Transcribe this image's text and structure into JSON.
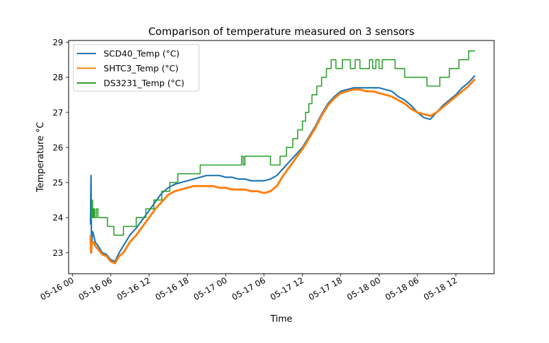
{
  "chart_data": {
    "type": "line",
    "title": "Comparison of temperature measured on 3 sensors",
    "xlabel": "Time",
    "ylabel": "Temperature °C",
    "xlim": [
      "2016-05-15T23:25",
      "2016-05-18T18:00"
    ],
    "ylim": [
      22.4,
      29.05
    ],
    "x_ticks": [
      "05-16 00",
      "05-16 06",
      "05-16 12",
      "05-16 18",
      "05-17 00",
      "05-17 06",
      "05-17 12",
      "05-17 18",
      "05-18 00",
      "05-18 06",
      "05-18 12"
    ],
    "y_ticks": [
      "23",
      "24",
      "25",
      "26",
      "27",
      "28",
      "29"
    ],
    "legend_position": "upper-left",
    "grid": false,
    "series": [
      {
        "name": "SCD40_Temp (°C)",
        "color": "#1f77b4",
        "x": [
          "2016-05-16T02:50",
          "2016-05-16T02:55",
          "2016-05-16T03:00",
          "2016-05-16T03:05",
          "2016-05-16T03:10",
          "2016-05-16T03:20",
          "2016-05-16T03:35",
          "2016-05-16T04:00",
          "2016-05-16T04:40",
          "2016-05-16T05:20",
          "2016-05-16T06:00",
          "2016-05-16T06:40",
          "2016-05-16T07:20",
          "2016-05-16T08:00",
          "2016-05-16T09:00",
          "2016-05-16T10:00",
          "2016-05-16T11:00",
          "2016-05-16T12:00",
          "2016-05-16T13:00",
          "2016-05-16T14:00",
          "2016-05-16T15:00",
          "2016-05-16T16:00",
          "2016-05-16T17:00",
          "2016-05-16T18:00",
          "2016-05-16T19:00",
          "2016-05-16T20:00",
          "2016-05-16T21:00",
          "2016-05-16T22:00",
          "2016-05-16T23:00",
          "2016-05-17T00:00",
          "2016-05-17T01:00",
          "2016-05-17T02:00",
          "2016-05-17T03:00",
          "2016-05-17T04:00",
          "2016-05-17T05:00",
          "2016-05-17T06:00",
          "2016-05-17T07:00",
          "2016-05-17T08:00",
          "2016-05-17T09:00",
          "2016-05-17T10:00",
          "2016-05-17T11:00",
          "2016-05-17T12:00",
          "2016-05-17T13:00",
          "2016-05-17T14:00",
          "2016-05-17T15:00",
          "2016-05-17T16:00",
          "2016-05-17T17:00",
          "2016-05-17T18:00",
          "2016-05-17T19:00",
          "2016-05-17T20:00",
          "2016-05-17T21:00",
          "2016-05-17T22:00",
          "2016-05-17T23:00",
          "2016-05-18T00:00",
          "2016-05-18T01:00",
          "2016-05-18T02:00",
          "2016-05-18T03:00",
          "2016-05-18T04:00",
          "2016-05-18T05:00",
          "2016-05-18T06:00",
          "2016-05-18T07:00",
          "2016-05-18T08:00",
          "2016-05-18T09:00",
          "2016-05-18T10:00",
          "2016-05-18T11:00",
          "2016-05-18T12:00",
          "2016-05-18T13:00",
          "2016-05-18T14:00",
          "2016-05-18T15:00"
        ],
        "y": [
          23.8,
          25.2,
          23.0,
          23.4,
          23.6,
          23.5,
          23.3,
          23.2,
          23.0,
          22.95,
          22.8,
          22.75,
          23.0,
          23.2,
          23.5,
          23.7,
          23.95,
          24.2,
          24.45,
          24.7,
          24.85,
          24.95,
          25.0,
          25.05,
          25.1,
          25.15,
          25.2,
          25.2,
          25.2,
          25.15,
          25.15,
          25.1,
          25.1,
          25.05,
          25.05,
          25.05,
          25.1,
          25.2,
          25.4,
          25.6,
          25.8,
          26.0,
          26.3,
          26.6,
          26.95,
          27.25,
          27.45,
          27.6,
          27.65,
          27.7,
          27.7,
          27.7,
          27.7,
          27.7,
          27.65,
          27.6,
          27.45,
          27.35,
          27.2,
          27.0,
          26.85,
          26.8,
          27.0,
          27.2,
          27.35,
          27.5,
          27.7,
          27.85,
          28.05
        ]
      },
      {
        "name": "SHTC3_Temp (°C)",
        "color": "#ff7f0e",
        "x": [
          "2016-05-16T02:50",
          "2016-05-16T02:55",
          "2016-05-16T03:00",
          "2016-05-16T03:10",
          "2016-05-16T03:20",
          "2016-05-16T03:35",
          "2016-05-16T04:00",
          "2016-05-16T04:40",
          "2016-05-16T05:20",
          "2016-05-16T06:00",
          "2016-05-16T06:40",
          "2016-05-16T07:20",
          "2016-05-16T08:00",
          "2016-05-16T09:00",
          "2016-05-16T10:00",
          "2016-05-16T11:00",
          "2016-05-16T12:00",
          "2016-05-16T13:00",
          "2016-05-16T14:00",
          "2016-05-16T15:00",
          "2016-05-16T16:00",
          "2016-05-16T17:00",
          "2016-05-16T18:00",
          "2016-05-16T19:00",
          "2016-05-16T20:00",
          "2016-05-16T21:00",
          "2016-05-16T22:00",
          "2016-05-16T23:00",
          "2016-05-17T00:00",
          "2016-05-17T01:00",
          "2016-05-17T02:00",
          "2016-05-17T03:00",
          "2016-05-17T04:00",
          "2016-05-17T05:00",
          "2016-05-17T06:00",
          "2016-05-17T07:00",
          "2016-05-17T08:00",
          "2016-05-17T09:00",
          "2016-05-17T10:00",
          "2016-05-17T11:00",
          "2016-05-17T12:00",
          "2016-05-17T13:00",
          "2016-05-17T14:00",
          "2016-05-17T15:00",
          "2016-05-17T16:00",
          "2016-05-17T17:00",
          "2016-05-17T18:00",
          "2016-05-17T19:00",
          "2016-05-17T20:00",
          "2016-05-17T21:00",
          "2016-05-17T22:00",
          "2016-05-17T23:00",
          "2016-05-18T00:00",
          "2016-05-18T01:00",
          "2016-05-18T02:00",
          "2016-05-18T03:00",
          "2016-05-18T04:00",
          "2016-05-18T05:00",
          "2016-05-18T06:00",
          "2016-05-18T07:00",
          "2016-05-18T08:00",
          "2016-05-18T09:00",
          "2016-05-18T10:00",
          "2016-05-18T11:00",
          "2016-05-18T12:00",
          "2016-05-18T13:00",
          "2016-05-18T14:00",
          "2016-05-18T15:00"
        ],
        "y": [
          23.5,
          23.0,
          23.2,
          23.3,
          23.3,
          23.2,
          23.1,
          22.95,
          22.9,
          22.75,
          22.7,
          22.9,
          23.0,
          23.3,
          23.5,
          23.75,
          24.0,
          24.25,
          24.45,
          24.65,
          24.75,
          24.8,
          24.85,
          24.9,
          24.9,
          24.9,
          24.9,
          24.85,
          24.85,
          24.8,
          24.8,
          24.8,
          24.75,
          24.75,
          24.7,
          24.75,
          24.9,
          25.2,
          25.45,
          25.7,
          25.95,
          26.25,
          26.55,
          26.9,
          27.2,
          27.4,
          27.55,
          27.6,
          27.65,
          27.65,
          27.6,
          27.6,
          27.55,
          27.5,
          27.45,
          27.35,
          27.25,
          27.1,
          27.0,
          26.95,
          26.9,
          27.0,
          27.15,
          27.3,
          27.45,
          27.6,
          27.75,
          27.95
        ]
      },
      {
        "name": "DS3231_Temp (°C)",
        "color": "#2ca02c",
        "x": [
          "2016-05-16T02:50",
          "2016-05-16T03:00",
          "2016-05-16T03:10",
          "2016-05-16T03:20",
          "2016-05-16T03:30",
          "2016-05-16T03:45",
          "2016-05-16T04:00",
          "2016-05-16T05:30",
          "2016-05-16T06:30",
          "2016-05-16T08:00",
          "2016-05-16T10:00",
          "2016-05-16T11:30",
          "2016-05-16T12:45",
          "2016-05-16T14:00",
          "2016-05-16T15:15",
          "2016-05-16T16:30",
          "2016-05-16T20:00",
          "2016-05-17T02:30",
          "2016-05-17T02:45",
          "2016-05-17T03:00",
          "2016-05-17T04:30",
          "2016-05-17T07:00",
          "2016-05-17T08:30",
          "2016-05-17T09:30",
          "2016-05-17T10:30",
          "2016-05-17T11:15",
          "2016-05-17T12:00",
          "2016-05-17T12:30",
          "2016-05-17T13:00",
          "2016-05-17T13:30",
          "2016-05-17T14:15",
          "2016-05-17T15:00",
          "2016-05-17T15:45",
          "2016-05-17T16:30",
          "2016-05-17T17:15",
          "2016-05-17T18:15",
          "2016-05-17T19:30",
          "2016-05-17T20:15",
          "2016-05-17T21:00",
          "2016-05-17T22:30",
          "2016-05-17T23:00",
          "2016-05-17T23:30",
          "2016-05-18T00:00",
          "2016-05-18T00:30",
          "2016-05-18T02:30",
          "2016-05-18T04:00",
          "2016-05-18T07:30",
          "2016-05-18T09:30",
          "2016-05-18T11:00",
          "2016-05-18T12:30",
          "2016-05-18T14:00",
          "2016-05-18T15:00"
        ],
        "y": [
          24.0,
          24.5,
          24.0,
          24.25,
          24.0,
          24.25,
          24.0,
          23.75,
          23.5,
          23.75,
          24.0,
          24.25,
          24.5,
          24.75,
          25.0,
          25.25,
          25.5,
          25.75,
          25.5,
          25.75,
          25.75,
          25.5,
          25.75,
          26.0,
          26.25,
          26.5,
          26.75,
          27.0,
          27.25,
          27.5,
          27.75,
          28.0,
          28.25,
          28.5,
          28.25,
          28.5,
          28.25,
          28.5,
          28.25,
          28.5,
          28.25,
          28.5,
          28.25,
          28.5,
          28.25,
          28.0,
          27.75,
          28.0,
          28.25,
          28.5,
          28.75,
          28.75
        ]
      }
    ]
  }
}
